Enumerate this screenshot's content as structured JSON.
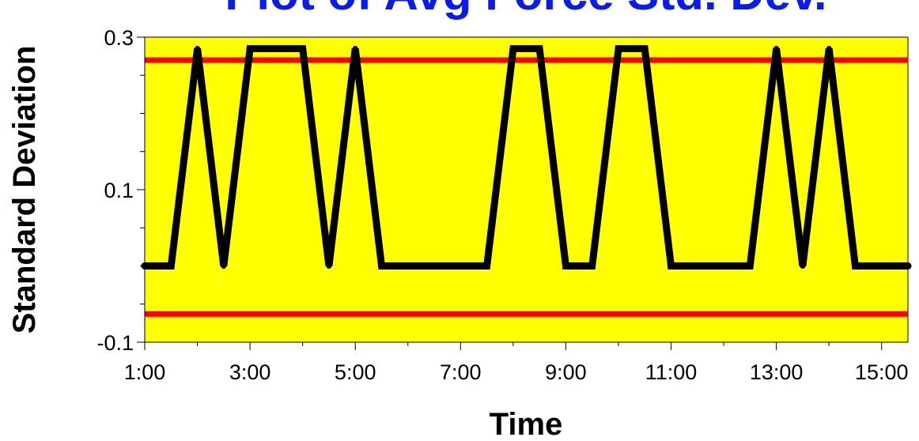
{
  "chart_data": {
    "type": "line",
    "title": "Plot of Avg Force Std. Dev.",
    "xlabel": "Time",
    "ylabel": "Standard Deviation",
    "x_tick_labels": [
      "1:00",
      "3:00",
      "5:00",
      "7:00",
      "9:00",
      "11:00",
      "13:00",
      "15:00"
    ],
    "y_tick_labels": [
      "-0.1",
      "0.1",
      "0.3"
    ],
    "xlim": [
      1.0,
      15.5
    ],
    "ylim": [
      -0.1,
      0.3
    ],
    "grid": false,
    "background_color": "#ffff00",
    "series": [
      {
        "color": "#000000",
        "x": [
          1.0,
          1.5,
          2.0,
          2.5,
          3.0,
          3.5,
          4.0,
          4.5,
          5.0,
          5.5,
          6.0,
          6.5,
          7.0,
          7.5,
          8.0,
          8.5,
          9.0,
          9.5,
          10.0,
          10.5,
          11.0,
          11.5,
          12.0,
          12.5,
          13.0,
          13.5,
          14.0,
          14.5,
          15.0,
          15.5
        ],
        "y": [
          0,
          0,
          0.285,
          0,
          0.285,
          0.285,
          0.285,
          0,
          0.285,
          0,
          0,
          0,
          0,
          0,
          0.285,
          0.285,
          0,
          0,
          0.285,
          0.285,
          0,
          0,
          0,
          0,
          0.285,
          0,
          0.285,
          0,
          0,
          0
        ]
      }
    ],
    "control_limits": {
      "color": "#ff0000",
      "values": [
        0.27,
        -0.063
      ]
    }
  }
}
